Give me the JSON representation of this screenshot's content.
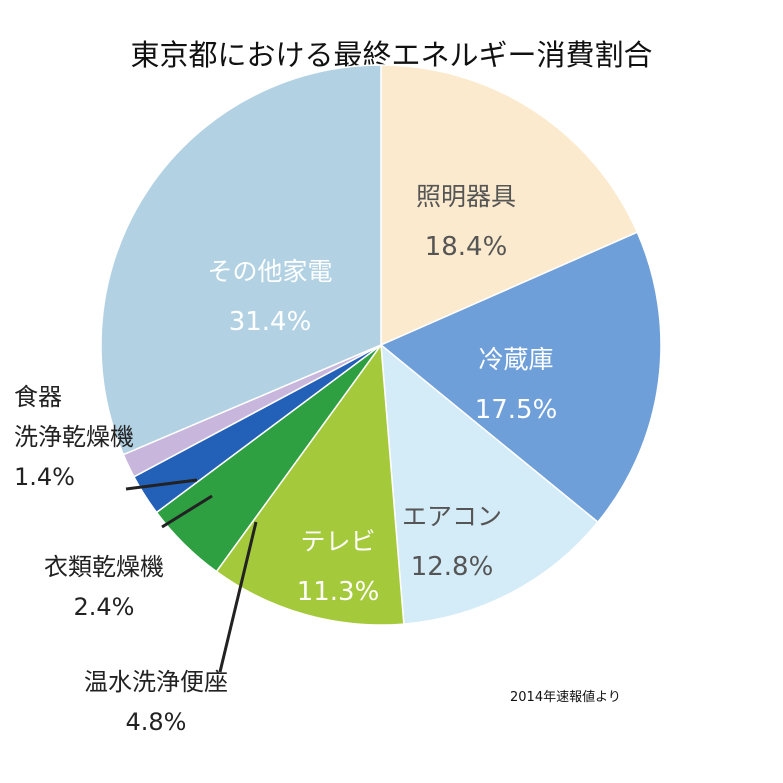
{
  "chart_data": {
    "type": "pie",
    "title": "東京都における最終エネルギー消費割合",
    "source_note": "2014年速報値より",
    "slices": [
      {
        "label": "照明器具",
        "value": 18.4,
        "value_label": "18.4%",
        "color": "#fbeacd",
        "text_color": "#555555"
      },
      {
        "label": "冷蔵庫",
        "value": 17.5,
        "value_label": "17.5%",
        "color": "#6f9fd8",
        "text_color": "#ffffff"
      },
      {
        "label": "エアコン",
        "value": 12.8,
        "value_label": "12.8%",
        "color": "#d4ebf8",
        "text_color": "#555555"
      },
      {
        "label": "テレビ",
        "value": 11.3,
        "value_label": "11.3%",
        "color": "#a4c93a",
        "text_color": "#ffffff"
      },
      {
        "label": "温水洗浄便座",
        "value": 4.8,
        "value_label": "4.8%",
        "color": "#2fa042",
        "text_color": "#222222"
      },
      {
        "label": "衣類乾燥機",
        "value": 2.4,
        "value_label": "2.4%",
        "color": "#2360b8",
        "text_color": "#222222"
      },
      {
        "label": "食器\n洗浄乾燥機",
        "value": 1.4,
        "value_label": "1.4%",
        "color": "#c9b6dc",
        "text_color": "#222222"
      },
      {
        "label": "その他家電",
        "value": 31.4,
        "value_label": "31.4%",
        "color": "#b2d2e4",
        "text_color": "#ffffff"
      }
    ]
  }
}
